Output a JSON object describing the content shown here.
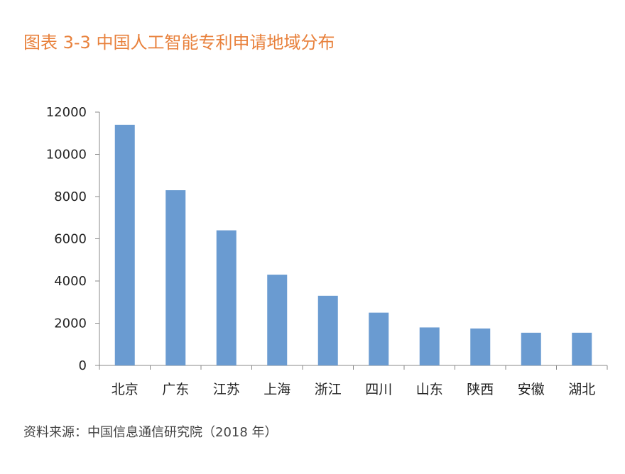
{
  "title": "图表 3-3 中国人工智能专利申请地域分布",
  "source": "资料来源：中国信息通信研究院（2018 年）",
  "chart_data": {
    "type": "bar",
    "categories": [
      "北京",
      "广东",
      "江苏",
      "上海",
      "浙江",
      "四川",
      "山东",
      "陕西",
      "安徽",
      "湖北"
    ],
    "values": [
      11400,
      8300,
      6400,
      4300,
      3300,
      2500,
      1800,
      1750,
      1550,
      1550
    ],
    "yticks": [
      "0",
      "2000",
      "4000",
      "6000",
      "8000",
      "10000",
      "12000"
    ],
    "ylim": [
      0,
      12000
    ],
    "bar_color": "#6a9bd1",
    "grid": false,
    "legend": false
  }
}
